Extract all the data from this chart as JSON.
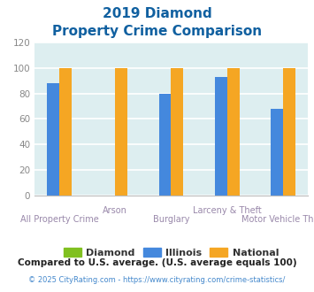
{
  "title_line1": "2019 Diamond",
  "title_line2": "Property Crime Comparison",
  "categories": [
    "All Property Crime",
    "Arson",
    "Burglary",
    "Larceny & Theft",
    "Motor Vehicle Theft"
  ],
  "diamond_values": [
    null,
    null,
    null,
    null,
    null
  ],
  "illinois_values": [
    88,
    null,
    80,
    93,
    68
  ],
  "national_values": [
    100,
    100,
    100,
    100,
    100
  ],
  "bar_width": 0.22,
  "colors": {
    "diamond": "#80c020",
    "illinois": "#4488dd",
    "national": "#f5a623"
  },
  "ylim": [
    0,
    120
  ],
  "yticks": [
    0,
    20,
    40,
    60,
    80,
    100,
    120
  ],
  "background_color": "#ddeef0",
  "grid_color": "#ffffff",
  "title_color": "#1060a0",
  "xlabel_color": "#9988aa",
  "legend_labels": [
    "Diamond",
    "Illinois",
    "National"
  ],
  "legend_text_color": "#333333",
  "footnote1": "Compared to U.S. average. (U.S. average equals 100)",
  "footnote2": "© 2025 CityRating.com - https://www.cityrating.com/crime-statistics/",
  "footnote1_color": "#222222",
  "footnote2_color": "#4488cc"
}
